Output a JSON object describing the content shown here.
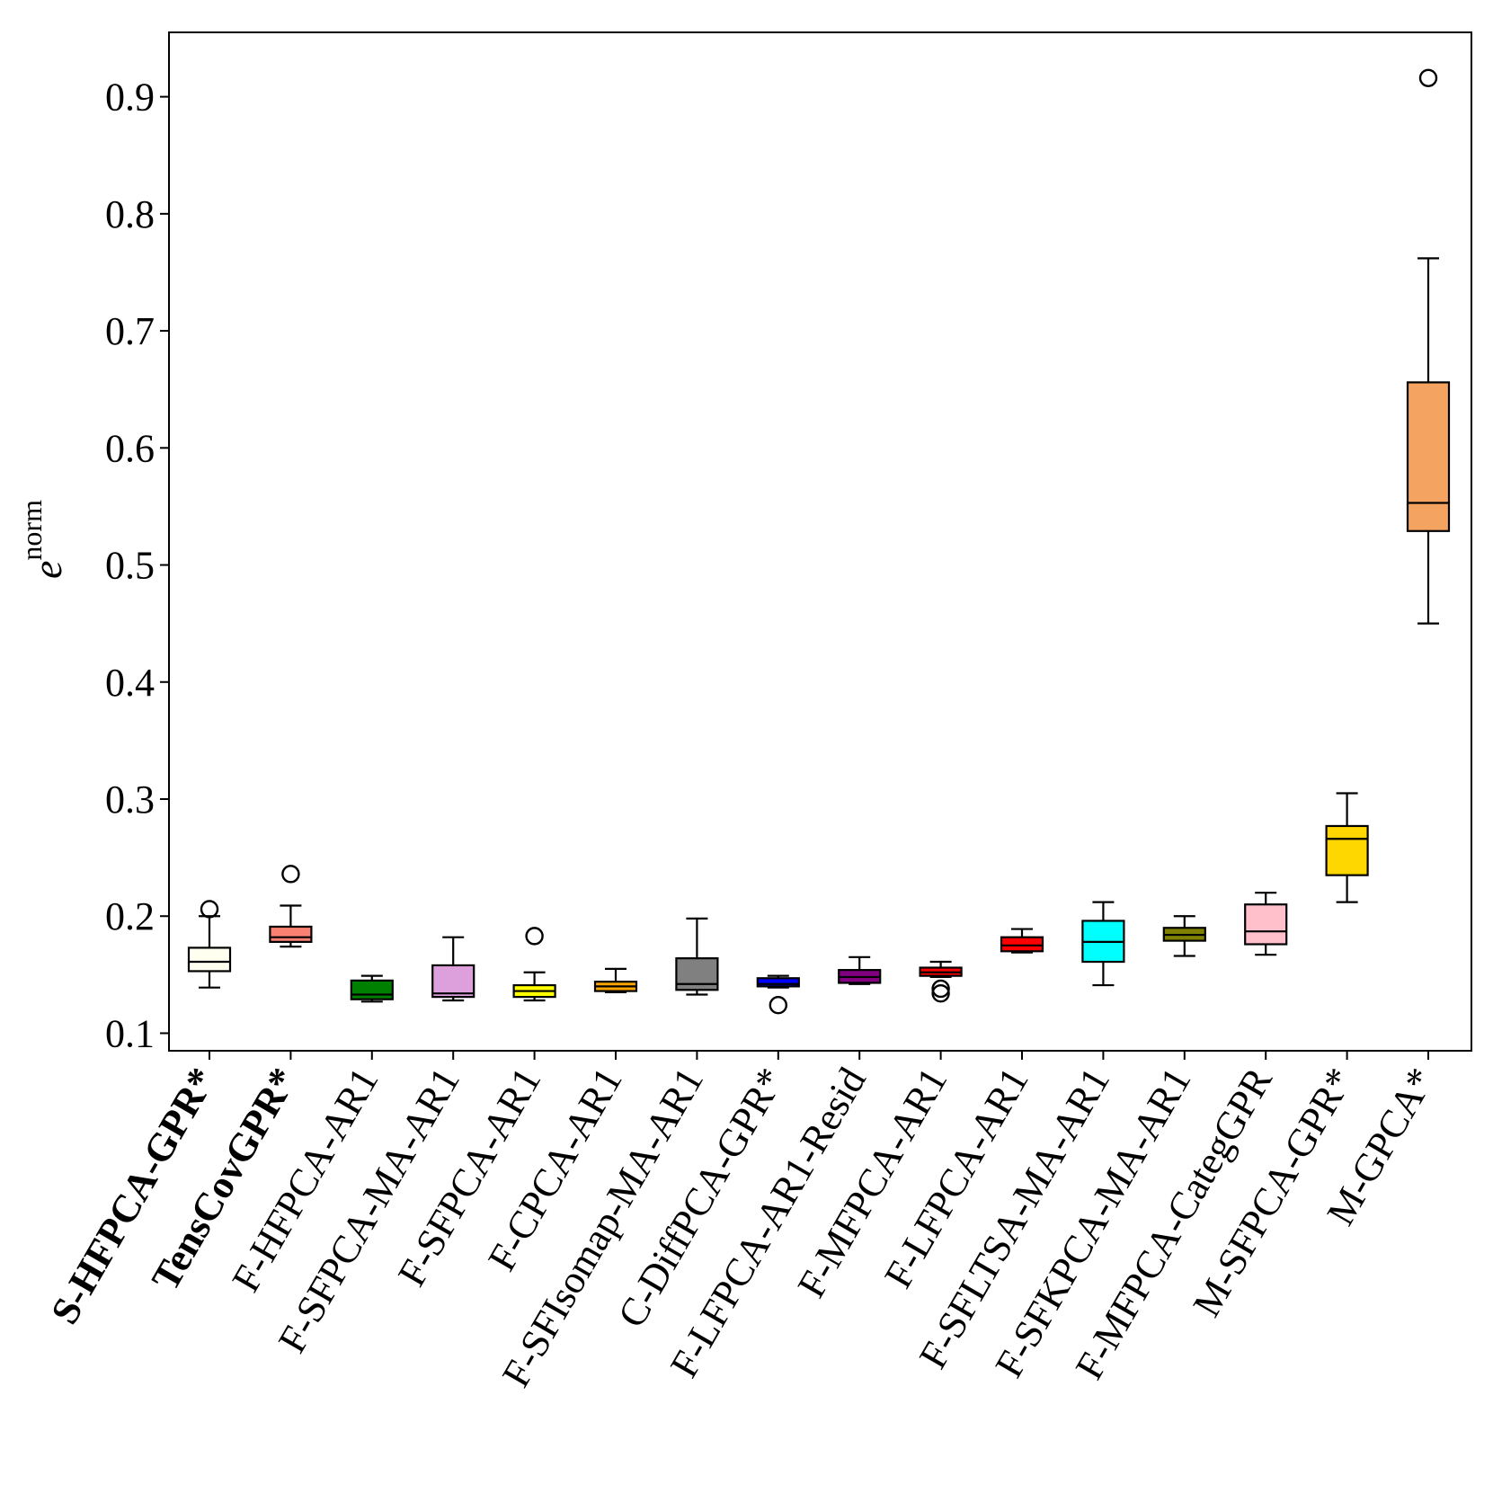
{
  "chart_data": {
    "type": "box",
    "ylabel": "e",
    "ylabel_superscript": "norm",
    "ylim": [
      0.085,
      0.955
    ],
    "yticks": [
      0.1,
      0.2,
      0.3,
      0.4,
      0.5,
      0.6,
      0.7,
      0.8,
      0.9
    ],
    "grid": false,
    "categories": [
      "S-HFPCA-GPR*",
      "TensCovGPR*",
      "F-HFPCA-AR1",
      "F-SFPCA-MA-AR1",
      "F-SFPCA-AR1",
      "F-CPCA-AR1",
      "F-SFIsomap-MA-AR1",
      "C-DiffPCA-GPR*",
      "F-LFPCA-AR1-Resid",
      "F-MFPCA-AR1",
      "F-LFPCA-AR1",
      "F-SFLTSA-MA-AR1",
      "F-SFKPCA-MA-AR1",
      "F-MFPCA-CategGPR",
      "M-SFPCA-GPR*",
      "M-GPCA*"
    ],
    "bold_categories": [
      "S-HFPCA-GPR*",
      "TensCovGPR*"
    ],
    "boxes": [
      {
        "whislo": 0.139,
        "q1": 0.153,
        "med": 0.161,
        "q3": 0.173,
        "whishi": 0.2,
        "fliers": [
          0.206
        ],
        "color": "#fffff0"
      },
      {
        "whislo": 0.174,
        "q1": 0.178,
        "med": 0.182,
        "q3": 0.191,
        "whishi": 0.209,
        "fliers": [
          0.236
        ],
        "color": "#fa8072"
      },
      {
        "whislo": 0.127,
        "q1": 0.129,
        "med": 0.133,
        "q3": 0.145,
        "whishi": 0.149,
        "fliers": [],
        "color": "#008000"
      },
      {
        "whislo": 0.128,
        "q1": 0.131,
        "med": 0.134,
        "q3": 0.158,
        "whishi": 0.182,
        "fliers": [],
        "color": "#dda0dd"
      },
      {
        "whislo": 0.128,
        "q1": 0.131,
        "med": 0.136,
        "q3": 0.141,
        "whishi": 0.152,
        "fliers": [
          0.183
        ],
        "color": "#ffff00"
      },
      {
        "whislo": 0.135,
        "q1": 0.136,
        "med": 0.14,
        "q3": 0.144,
        "whishi": 0.155,
        "fliers": [],
        "color": "#ffa500"
      },
      {
        "whislo": 0.133,
        "q1": 0.137,
        "med": 0.142,
        "q3": 0.164,
        "whishi": 0.198,
        "fliers": [],
        "color": "#808080"
      },
      {
        "whislo": 0.139,
        "q1": 0.14,
        "med": 0.142,
        "q3": 0.147,
        "whishi": 0.149,
        "fliers": [
          0.124
        ],
        "color": "#0000ff"
      },
      {
        "whislo": 0.142,
        "q1": 0.143,
        "med": 0.148,
        "q3": 0.154,
        "whishi": 0.165,
        "fliers": [],
        "color": "#800080"
      },
      {
        "whislo": 0.148,
        "q1": 0.149,
        "med": 0.152,
        "q3": 0.156,
        "whishi": 0.161,
        "fliers": [
          0.138,
          0.134
        ],
        "color": "#ff0000"
      },
      {
        "whislo": 0.169,
        "q1": 0.17,
        "med": 0.175,
        "q3": 0.182,
        "whishi": 0.189,
        "fliers": [],
        "color": "#ff0000"
      },
      {
        "whislo": 0.141,
        "q1": 0.161,
        "med": 0.178,
        "q3": 0.196,
        "whishi": 0.212,
        "fliers": [],
        "color": "#00ffff"
      },
      {
        "whislo": 0.166,
        "q1": 0.179,
        "med": 0.184,
        "q3": 0.19,
        "whishi": 0.2,
        "fliers": [],
        "color": "#808000"
      },
      {
        "whislo": 0.167,
        "q1": 0.176,
        "med": 0.187,
        "q3": 0.21,
        "whishi": 0.22,
        "fliers": [],
        "color": "#ffc0cb"
      },
      {
        "whislo": 0.212,
        "q1": 0.235,
        "med": 0.266,
        "q3": 0.277,
        "whishi": 0.305,
        "fliers": [],
        "color": "#ffd700"
      },
      {
        "whislo": 0.45,
        "q1": 0.529,
        "med": 0.553,
        "q3": 0.656,
        "whishi": 0.762,
        "fliers": [
          0.916
        ],
        "color": "#f4a460"
      }
    ]
  }
}
